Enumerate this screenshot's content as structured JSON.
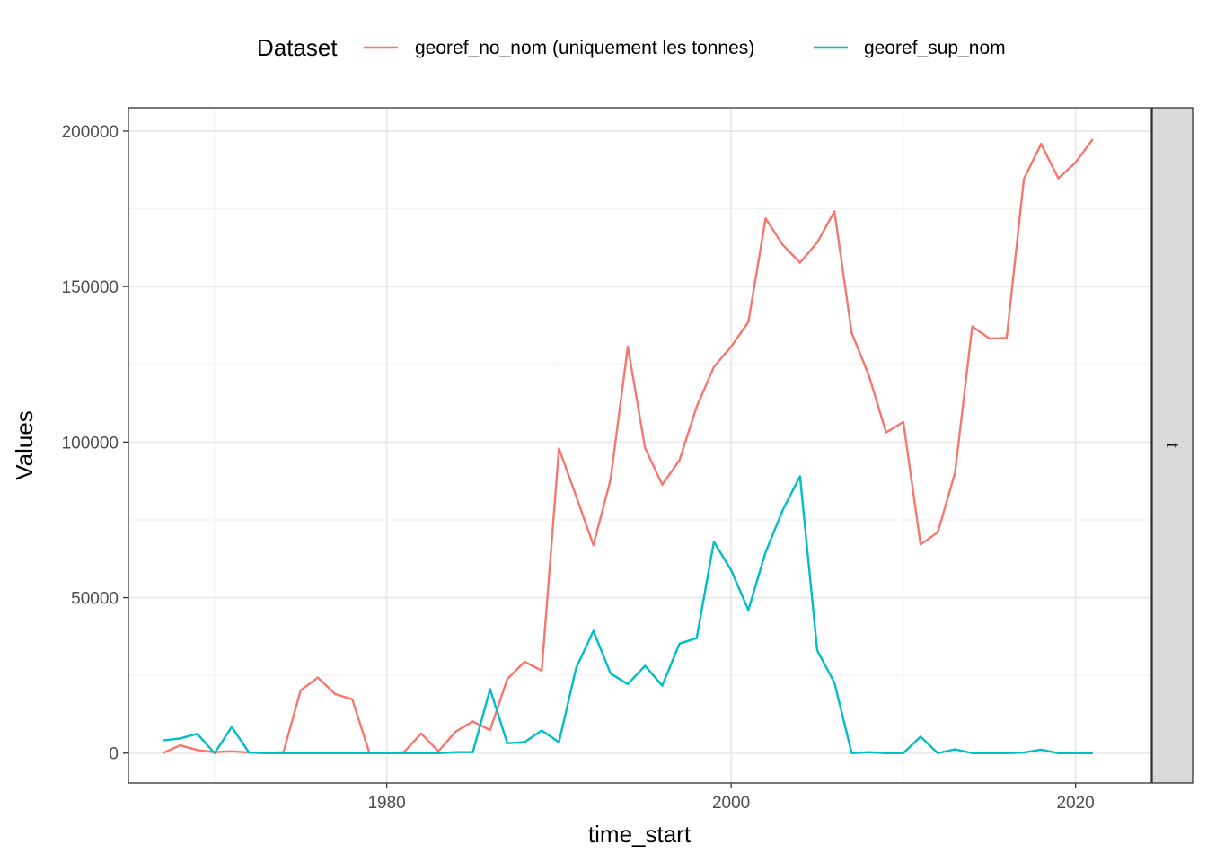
{
  "chart_data": {
    "type": "line",
    "xlabel": "time_start",
    "ylabel": "Values",
    "xlim": [
      1965.0,
      2024.4
    ],
    "ylim": [
      -9600,
      207500
    ],
    "x_ticks": [
      1980,
      2000,
      2020
    ],
    "y_ticks": [
      0,
      50000,
      100000,
      150000,
      200000
    ],
    "grid": true,
    "legend": {
      "title": "Dataset",
      "placement": "top"
    },
    "facet_label": "t",
    "series": [
      {
        "name": "georef_no_nom (uniquement les tonnes)",
        "color": "#F8766D",
        "x": [
          1967,
          1968,
          1969,
          1970,
          1971,
          1972,
          1973,
          1974,
          1975,
          1976,
          1977,
          1978,
          1979,
          1980,
          1981,
          1982,
          1983,
          1984,
          1985,
          1986,
          1987,
          1988,
          1989,
          1990,
          1991,
          1992,
          1993,
          1994,
          1995,
          1996,
          1997,
          1998,
          1999,
          2000,
          2001,
          2002,
          2003,
          2004,
          2005,
          2006,
          2007,
          2008,
          2009,
          2010,
          2011,
          2012,
          2013,
          2014,
          2015,
          2016,
          2017,
          2018,
          2019,
          2020,
          2021
        ],
        "values": [
          0,
          2500,
          1000,
          300,
          600,
          200,
          0,
          300,
          20200,
          24300,
          19000,
          17300,
          0,
          0,
          300,
          6300,
          600,
          6900,
          10200,
          7400,
          23800,
          29400,
          26500,
          98000,
          82600,
          66900,
          88000,
          130700,
          98200,
          86300,
          94200,
          111400,
          124200,
          130700,
          138600,
          171900,
          163400,
          157700,
          164200,
          174200,
          135100,
          121400,
          103100,
          106500,
          67100,
          71000,
          90100,
          137200,
          133300,
          133500,
          184600,
          195900,
          184800,
          189900,
          197400
        ]
      },
      {
        "name": "georef_sup_nom",
        "color": "#00BFC4",
        "x": [
          1967,
          1968,
          1969,
          1970,
          1971,
          1972,
          1973,
          1974,
          1975,
          1976,
          1977,
          1978,
          1979,
          1980,
          1981,
          1982,
          1983,
          1984,
          1985,
          1986,
          1987,
          1988,
          1989,
          1990,
          1991,
          1992,
          1993,
          1994,
          1995,
          1996,
          1997,
          1998,
          1999,
          2000,
          2001,
          2002,
          2003,
          2004,
          2005,
          2006,
          2007,
          2008,
          2009,
          2010,
          2011,
          2012,
          2013,
          2014,
          2015,
          2016,
          2017,
          2018,
          2019,
          2020,
          2021
        ],
        "values": [
          4100,
          4700,
          6200,
          0,
          8400,
          200,
          0,
          0,
          0,
          0,
          0,
          0,
          0,
          0,
          0,
          0,
          0,
          300,
          300,
          20600,
          3200,
          3500,
          7300,
          3500,
          27400,
          39300,
          25600,
          22200,
          28100,
          21700,
          35200,
          37000,
          68000,
          58800,
          46000,
          64600,
          78200,
          89000,
          33000,
          22600,
          0,
          300,
          0,
          0,
          5300,
          0,
          1200,
          0,
          0,
          0,
          200,
          1100,
          0,
          0,
          0
        ]
      }
    ]
  }
}
